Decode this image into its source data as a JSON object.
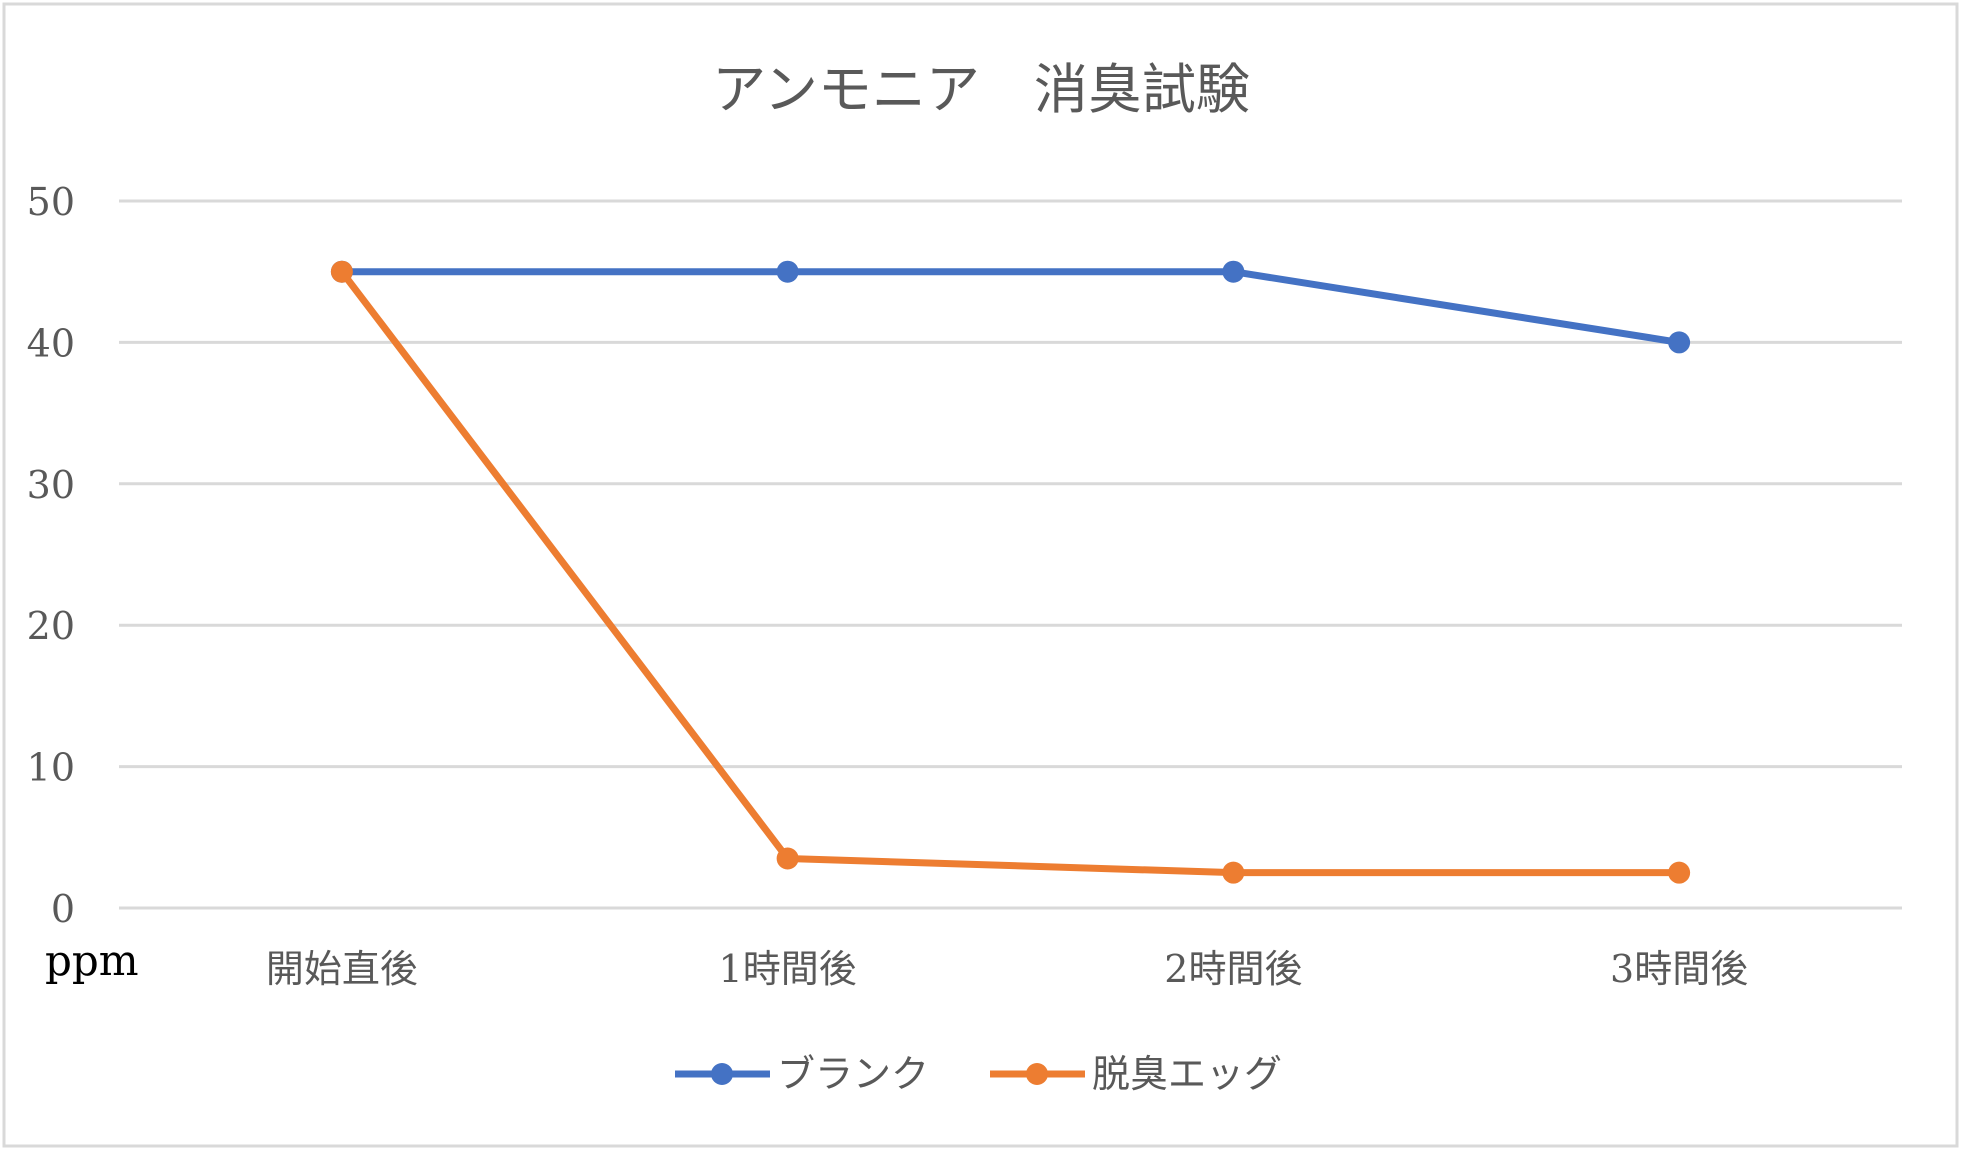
{
  "chart_data": {
    "type": "line",
    "title": "アンモニア　消臭試験",
    "ylabel": "ppm",
    "xlabel": "",
    "categories": [
      "開始直後",
      "1時間後",
      "2時間後",
      "3時間後"
    ],
    "ylim": [
      0,
      50
    ],
    "yticks": [
      0,
      10,
      20,
      30,
      40,
      50
    ],
    "grid": true,
    "legend_position": "bottom",
    "series": [
      {
        "name": "ブランク",
        "values": [
          45,
          45,
          45,
          40
        ],
        "color": "#4472C4"
      },
      {
        "name": "脱臭エッグ",
        "values": [
          45,
          3.5,
          2.5,
          2.5
        ],
        "color": "#ED7D31"
      }
    ]
  }
}
